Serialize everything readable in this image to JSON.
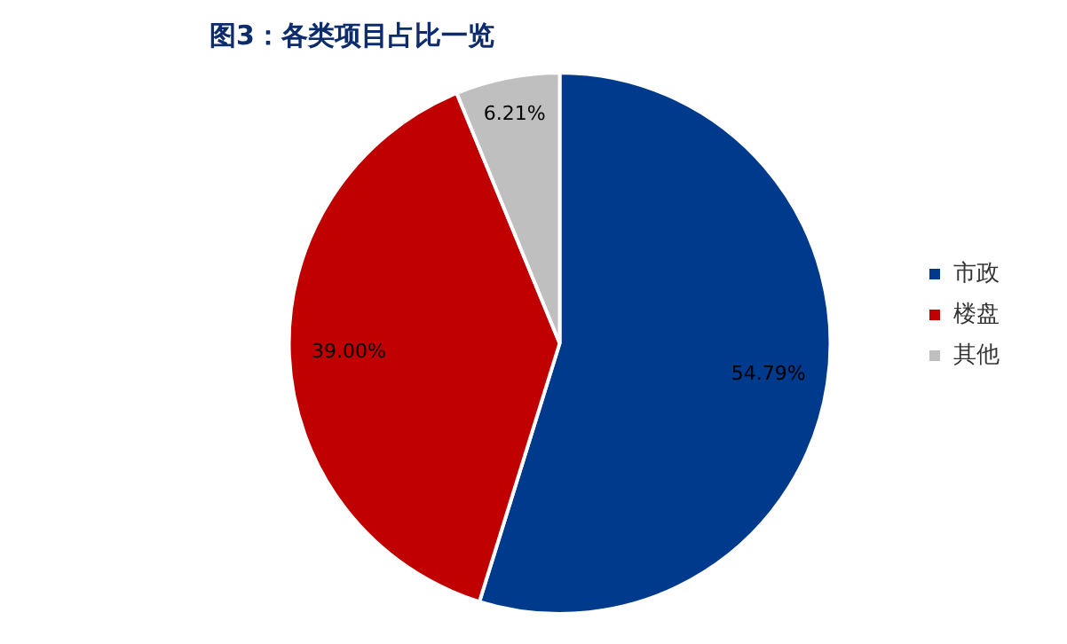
{
  "chart_data": {
    "type": "pie",
    "title": "图3：各类项目占比一览",
    "categories": [
      "市政",
      "楼盘",
      "其他"
    ],
    "values": [
      54.79,
      39.0,
      6.21
    ],
    "colors": [
      "#003a8c",
      "#c00000",
      "#bfbfbf"
    ],
    "value_labels": [
      "54.79%",
      "39.00%",
      "6.21%"
    ],
    "legend": "right"
  }
}
